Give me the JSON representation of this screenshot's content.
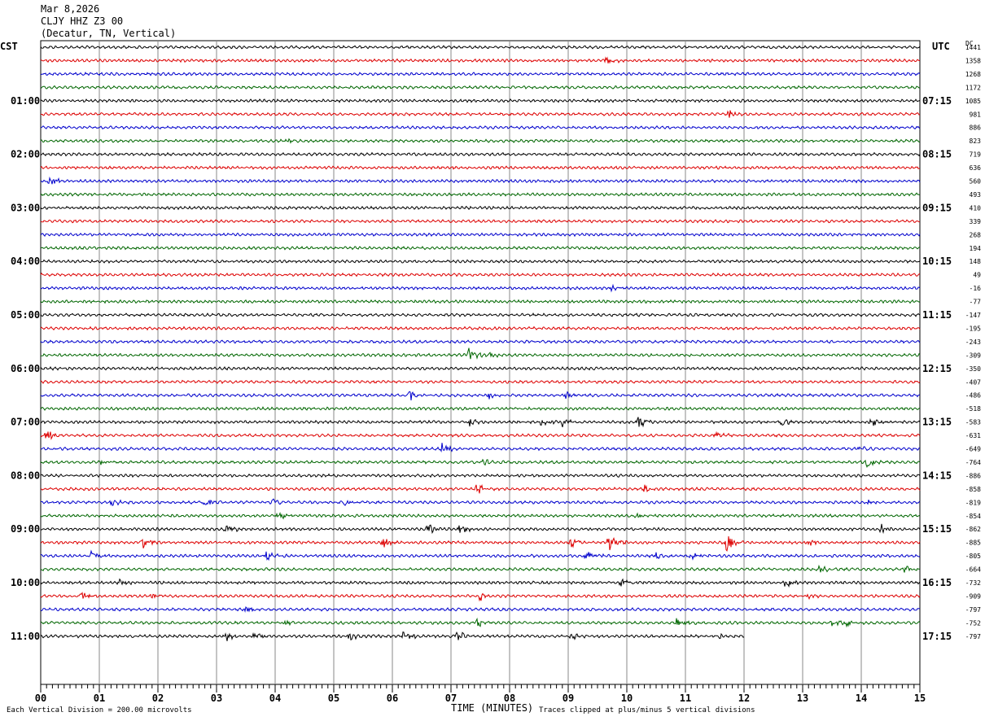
{
  "header": {
    "date": "Mar 8,2026",
    "station": "CLJY HHZ Z3 00",
    "location": "(Decatur, TN, Vertical)"
  },
  "labels": {
    "left_timezone": "CST",
    "right_timezone": "UTC",
    "dc_label": "DC"
  },
  "footer": {
    "scale_note": "Each Vertical Division =  200.00 microvolts",
    "clip_note": "Traces clipped at plus/minus 5 vertical divisions",
    "x_title": "TIME (MINUTES)"
  },
  "chart_data": {
    "type": "line",
    "title": "CLJY HHZ Z3 00 (Decatur, TN, Vertical)",
    "xlabel": "TIME (MINUTES)",
    "x_ticks": [
      "00",
      "01",
      "02",
      "03",
      "04",
      "05",
      "06",
      "07",
      "08",
      "09",
      "10",
      "11",
      "12",
      "13",
      "14",
      "15"
    ],
    "xlim": [
      0,
      15
    ],
    "row_count": 45,
    "row_colors": [
      "#000000",
      "#dd0000",
      "#0000cc",
      "#006600"
    ],
    "last_row_end_minute": 12,
    "cst_labels": [
      "01:00",
      "02:00",
      "03:00",
      "04:00",
      "05:00",
      "06:00",
      "07:00",
      "08:00",
      "09:00",
      "10:00",
      "11:00"
    ],
    "utc_labels": [
      "07:15",
      "08:15",
      "09:15",
      "10:15",
      "11:15",
      "12:15",
      "13:15",
      "14:15",
      "15:15",
      "16:15",
      "17:15"
    ],
    "dc_offsets": [
      "1441",
      "1358",
      "1268",
      "1172",
      "1085",
      "981",
      "886",
      "823",
      "719",
      "636",
      "560",
      "493",
      "410",
      "339",
      "268",
      "194",
      "148",
      "49",
      "-16",
      "-77",
      "-147",
      "-195",
      "-243",
      "-309",
      "-350",
      "-407",
      "-486",
      "-518",
      "-583",
      "-631",
      "-649",
      "-764",
      "-886",
      "-858",
      "-819",
      "-854",
      "-862",
      "-885",
      "-805",
      "-664",
      "-732",
      "-909",
      "-797",
      "-752",
      "-797"
    ],
    "events": [
      {
        "row": 1,
        "minute": 9.65,
        "amp": 0.8
      },
      {
        "row": 5,
        "minute": 11.75,
        "amp": 0.9
      },
      {
        "row": 7,
        "minute": 4.25,
        "amp": 0.6
      },
      {
        "row": 10,
        "minute": 0.15,
        "amp": 1.0
      },
      {
        "row": 18,
        "minute": 9.75,
        "amp": 0.6
      },
      {
        "row": 23,
        "minute": 7.3,
        "amp": 1.6
      },
      {
        "row": 23,
        "minute": 7.65,
        "amp": 0.7
      },
      {
        "row": 26,
        "minute": 6.3,
        "amp": 0.8
      },
      {
        "row": 26,
        "minute": 7.65,
        "amp": 0.8
      },
      {
        "row": 26,
        "minute": 8.95,
        "amp": 0.6
      },
      {
        "row": 28,
        "minute": 7.3,
        "amp": 0.9
      },
      {
        "row": 28,
        "minute": 8.55,
        "amp": 0.8
      },
      {
        "row": 28,
        "minute": 8.9,
        "amp": 0.9
      },
      {
        "row": 28,
        "minute": 10.2,
        "amp": 1.2
      },
      {
        "row": 28,
        "minute": 12.65,
        "amp": 0.8
      },
      {
        "row": 28,
        "minute": 14.15,
        "amp": 1.0
      },
      {
        "row": 29,
        "minute": 0.1,
        "amp": 1.0
      },
      {
        "row": 29,
        "minute": 11.5,
        "amp": 0.9
      },
      {
        "row": 30,
        "minute": 6.85,
        "amp": 1.0
      },
      {
        "row": 30,
        "minute": 13.95,
        "amp": 0.9
      },
      {
        "row": 31,
        "minute": 1.05,
        "amp": 0.6
      },
      {
        "row": 31,
        "minute": 7.55,
        "amp": 0.6
      },
      {
        "row": 31,
        "minute": 14.1,
        "amp": 0.9
      },
      {
        "row": 33,
        "minute": 7.45,
        "amp": 1.0
      },
      {
        "row": 33,
        "minute": 10.3,
        "amp": 0.7
      },
      {
        "row": 34,
        "minute": 1.2,
        "amp": 0.7
      },
      {
        "row": 34,
        "minute": 2.8,
        "amp": 0.9
      },
      {
        "row": 34,
        "minute": 3.95,
        "amp": 0.8
      },
      {
        "row": 34,
        "minute": 5.2,
        "amp": 0.6
      },
      {
        "row": 34,
        "minute": 14.1,
        "amp": 0.8
      },
      {
        "row": 35,
        "minute": 4.05,
        "amp": 0.7
      },
      {
        "row": 35,
        "minute": 10.15,
        "amp": 0.5
      },
      {
        "row": 36,
        "minute": 3.15,
        "amp": 0.9
      },
      {
        "row": 36,
        "minute": 6.6,
        "amp": 1.0
      },
      {
        "row": 36,
        "minute": 7.15,
        "amp": 0.8
      },
      {
        "row": 36,
        "minute": 14.35,
        "amp": 0.8
      },
      {
        "row": 37,
        "minute": 1.75,
        "amp": 1.0
      },
      {
        "row": 37,
        "minute": 5.85,
        "amp": 1.0
      },
      {
        "row": 37,
        "minute": 9.05,
        "amp": 0.9
      },
      {
        "row": 37,
        "minute": 9.7,
        "amp": 1.8
      },
      {
        "row": 37,
        "minute": 11.7,
        "amp": 1.6
      },
      {
        "row": 37,
        "minute": 13.1,
        "amp": 0.6
      },
      {
        "row": 38,
        "minute": 0.85,
        "amp": 1.1
      },
      {
        "row": 38,
        "minute": 3.85,
        "amp": 1.2
      },
      {
        "row": 38,
        "minute": 9.3,
        "amp": 1.4
      },
      {
        "row": 38,
        "minute": 10.5,
        "amp": 0.7
      },
      {
        "row": 38,
        "minute": 11.1,
        "amp": 0.8
      },
      {
        "row": 39,
        "minute": 13.3,
        "amp": 0.6
      },
      {
        "row": 39,
        "minute": 14.75,
        "amp": 0.6
      },
      {
        "row": 40,
        "minute": 1.35,
        "amp": 0.5
      },
      {
        "row": 40,
        "minute": 9.9,
        "amp": 0.7
      },
      {
        "row": 40,
        "minute": 12.7,
        "amp": 1.0
      },
      {
        "row": 41,
        "minute": 0.7,
        "amp": 0.8
      },
      {
        "row": 41,
        "minute": 1.9,
        "amp": 0.6
      },
      {
        "row": 41,
        "minute": 7.5,
        "amp": 0.9
      },
      {
        "row": 41,
        "minute": 13.1,
        "amp": 0.6
      },
      {
        "row": 42,
        "minute": 3.5,
        "amp": 0.7
      },
      {
        "row": 43,
        "minute": 4.15,
        "amp": 0.6
      },
      {
        "row": 43,
        "minute": 7.45,
        "amp": 0.7
      },
      {
        "row": 43,
        "minute": 10.85,
        "amp": 1.0
      },
      {
        "row": 43,
        "minute": 13.5,
        "amp": 0.6
      },
      {
        "row": 43,
        "minute": 13.75,
        "amp": 0.6
      },
      {
        "row": 44,
        "minute": 3.15,
        "amp": 1.0
      },
      {
        "row": 44,
        "minute": 3.65,
        "amp": 0.8
      },
      {
        "row": 44,
        "minute": 5.25,
        "amp": 0.7
      },
      {
        "row": 44,
        "minute": 6.2,
        "amp": 1.0
      },
      {
        "row": 44,
        "minute": 7.1,
        "amp": 1.1
      },
      {
        "row": 44,
        "minute": 9.05,
        "amp": 0.6
      },
      {
        "row": 44,
        "minute": 11.6,
        "amp": 0.6
      }
    ]
  }
}
